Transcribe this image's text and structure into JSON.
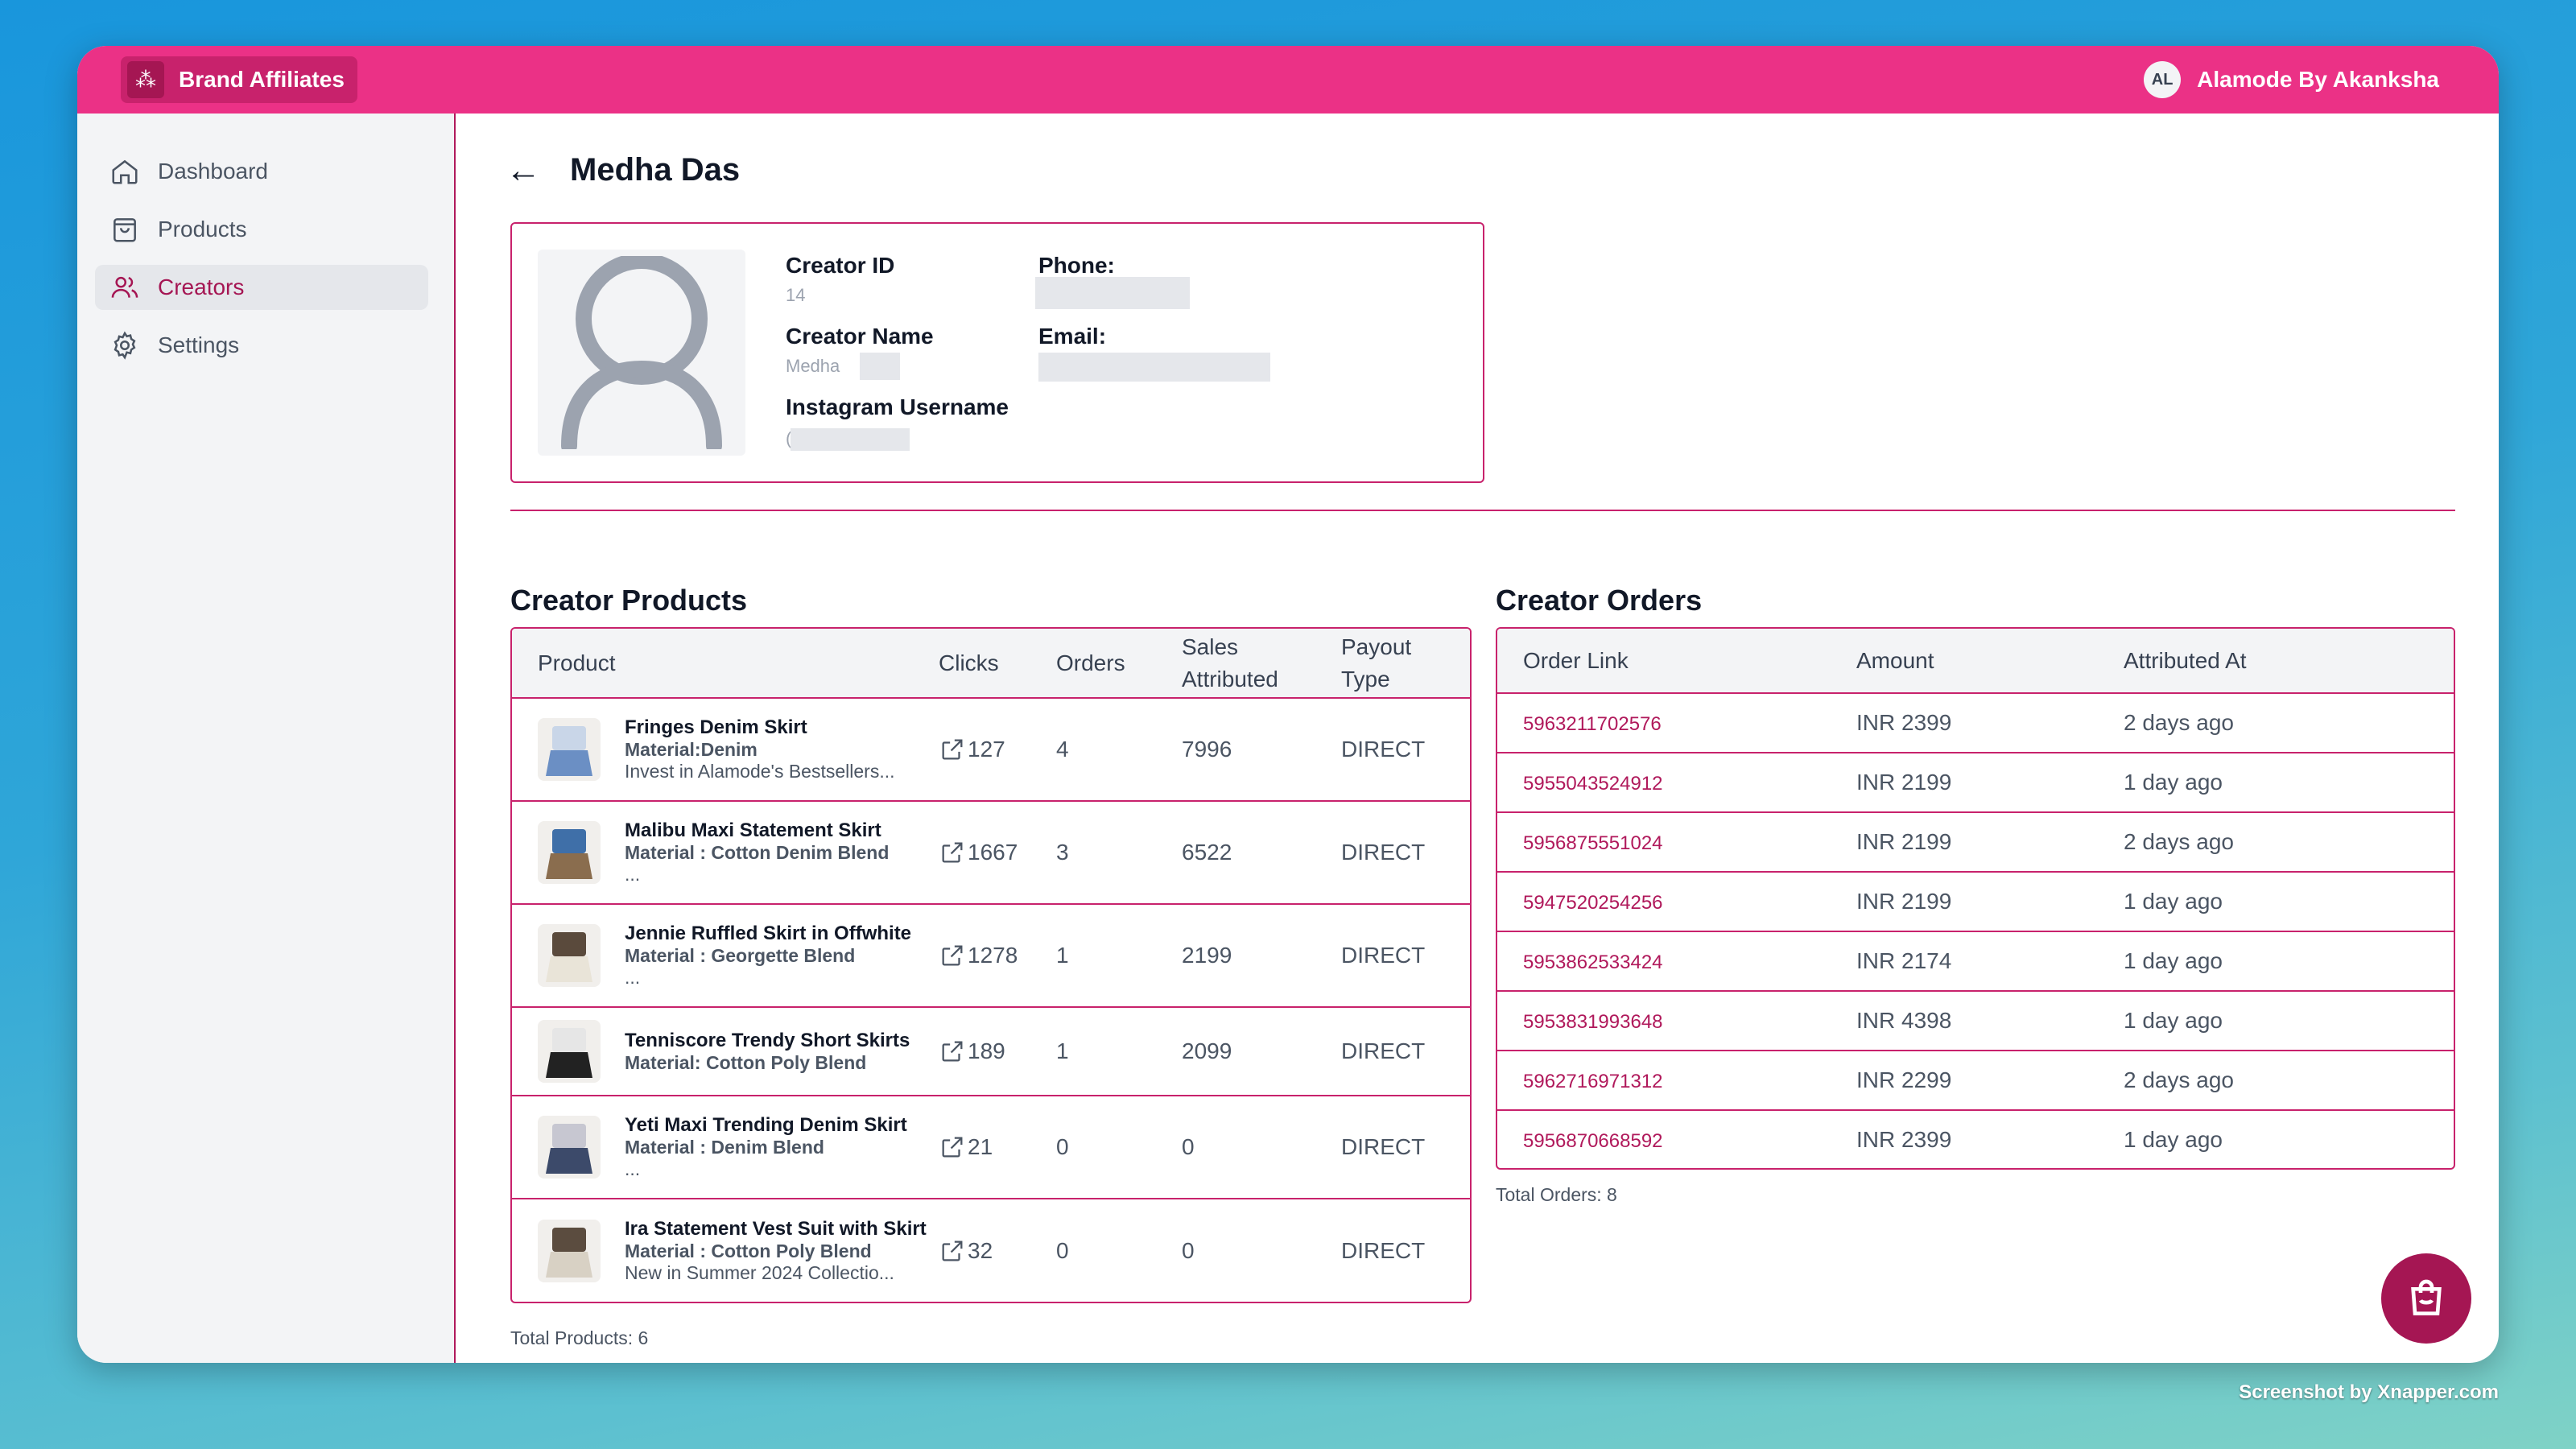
{
  "app": {
    "title": "Brand Affiliates",
    "user_initials": "AL",
    "user_name": "Alamode By Akanksha"
  },
  "sidebar": {
    "items": [
      {
        "label": "Dashboard",
        "icon": "home-icon"
      },
      {
        "label": "Products",
        "icon": "shopping-bag-icon"
      },
      {
        "label": "Creators",
        "icon": "users-icon",
        "active": true
      },
      {
        "label": "Settings",
        "icon": "gear-icon"
      }
    ]
  },
  "page": {
    "title": "Medha Das"
  },
  "creator": {
    "id_label": "Creator ID",
    "id": "14",
    "name_label": "Creator Name",
    "name": "Medha",
    "instagram_label": "Instagram Username",
    "instagram": "(",
    "phone_label": "Phone:",
    "email_label": "Email:"
  },
  "products": {
    "title": "Creator Products",
    "headers": {
      "product": "Product",
      "clicks": "Clicks",
      "orders": "Orders",
      "sales_1": "Sales",
      "sales_2": "Attributed",
      "payout_1": "Payout",
      "payout_2": "Type"
    },
    "rows": [
      {
        "name": "Fringes Denim Skirt",
        "material": "Material:Denim",
        "desc": "Invest in Alamode's Bestsellers...",
        "clicks": "127",
        "orders": "4",
        "sales": "7996",
        "payout": "DIRECT"
      },
      {
        "name": "Malibu Maxi Statement Skirt",
        "material": "Material : Cotton Denim Blend",
        "desc": "...",
        "clicks": "1667",
        "orders": "3",
        "sales": "6522",
        "payout": "DIRECT"
      },
      {
        "name": "Jennie Ruffled Skirt in Offwhite",
        "material": "Material : Georgette Blend",
        "desc": "...",
        "clicks": "1278",
        "orders": "1",
        "sales": "2199",
        "payout": "DIRECT"
      },
      {
        "name": "Tenniscore Trendy Short Skirts",
        "material": "Material: Cotton Poly Blend",
        "desc": "",
        "clicks": "189",
        "orders": "1",
        "sales": "2099",
        "payout": "DIRECT"
      },
      {
        "name": "Yeti Maxi Trending Denim Skirt",
        "material": "Material : Denim Blend",
        "desc": "...",
        "clicks": "21",
        "orders": "0",
        "sales": "0",
        "payout": "DIRECT"
      },
      {
        "name": "Ira Statement Vest Suit with Skirt",
        "material": "Material : Cotton Poly Blend",
        "desc": "New in Summer 2024 Collectio...",
        "clicks": "32",
        "orders": "0",
        "sales": "0",
        "payout": "DIRECT"
      }
    ],
    "total": "Total Products: 6"
  },
  "orders": {
    "title": "Creator Orders",
    "headers": {
      "link": "Order Link",
      "amount": "Amount",
      "attributed": "Attributed At"
    },
    "rows": [
      {
        "link": "5963211702576",
        "amount": "INR 2399",
        "at": "2 days ago"
      },
      {
        "link": "5955043524912",
        "amount": "INR 2199",
        "at": "1 day ago"
      },
      {
        "link": "5956875551024",
        "amount": "INR 2199",
        "at": "2 days ago"
      },
      {
        "link": "5947520254256",
        "amount": "INR 2199",
        "at": "1 day ago"
      },
      {
        "link": "5953862533424",
        "amount": "INR 2174",
        "at": "1 day ago"
      },
      {
        "link": "5953831993648",
        "amount": "INR 4398",
        "at": "1 day ago"
      },
      {
        "link": "5962716971312",
        "amount": "INR 2299",
        "at": "2 days ago"
      },
      {
        "link": "5956870668592",
        "amount": "INR 2399",
        "at": "1 day ago"
      }
    ],
    "total": "Total Orders: 8"
  },
  "watermark": "Screenshot by Xnapper.com",
  "colors": {
    "brand": "#eb3186",
    "brand_dark": "#a51653",
    "accent_border": "#c8226c"
  }
}
